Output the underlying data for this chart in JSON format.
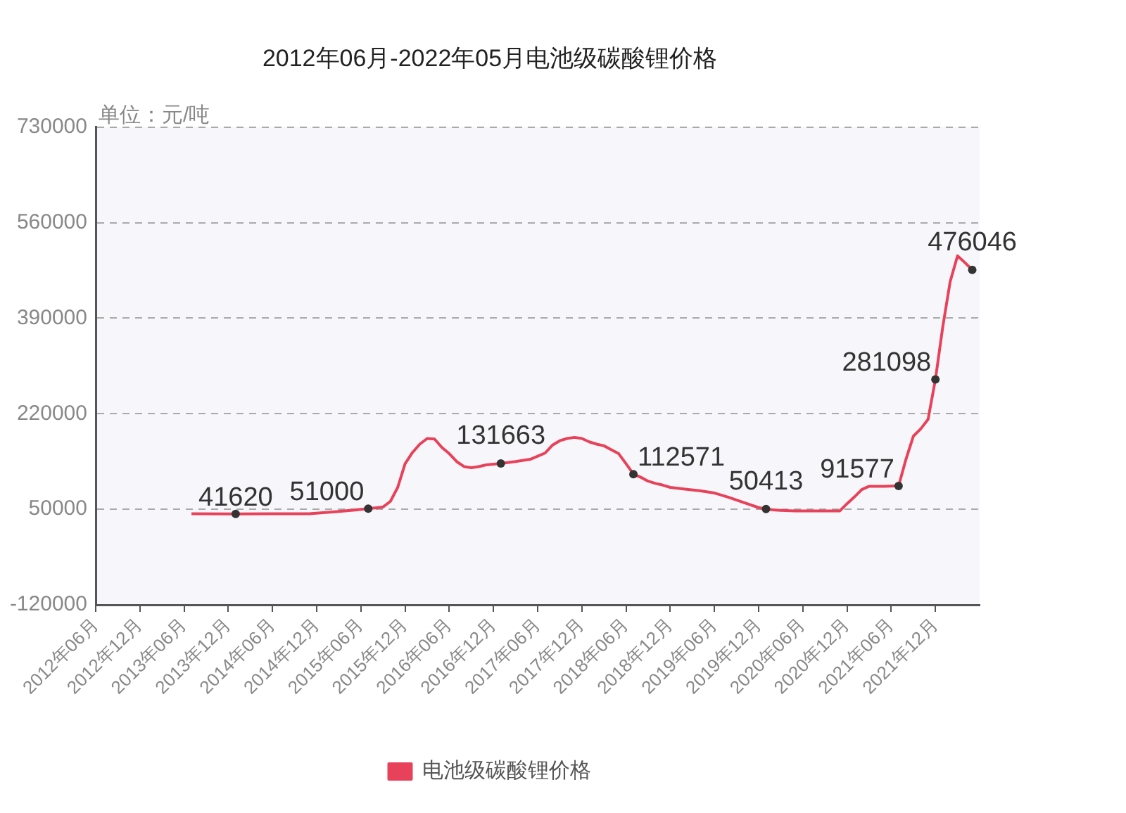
{
  "chart_data": {
    "type": "line",
    "title": "2012年06月-2022年05月电池级碳酸锂价格",
    "ylabel": "单位：元/吨",
    "x": [
      "2013-07",
      "2014-01",
      "2014-06",
      "2014-11",
      "2015-03",
      "2015-07",
      "2015-09",
      "2015-10",
      "2015-11",
      "2015-12",
      "2016-01",
      "2016-02",
      "2016-03",
      "2016-04",
      "2016-05",
      "2016-06",
      "2016-07",
      "2016-08",
      "2016-09",
      "2016-10",
      "2016-11",
      "2017-01",
      "2017-03",
      "2017-05",
      "2017-07",
      "2017-08",
      "2017-09",
      "2017-10",
      "2017-11",
      "2017-12",
      "2018-01",
      "2018-02",
      "2018-03",
      "2018-04",
      "2018-05",
      "2018-06",
      "2018-07",
      "2018-08",
      "2018-09",
      "2018-10",
      "2018-11",
      "2018-12",
      "2019-02",
      "2019-04",
      "2019-06",
      "2019-08",
      "2019-10",
      "2019-12",
      "2020-01",
      "2020-02",
      "2020-03",
      "2020-05",
      "2020-07",
      "2020-09",
      "2020-11",
      "2020-12",
      "2021-01",
      "2021-02",
      "2021-03",
      "2021-05",
      "2021-07",
      "2021-08",
      "2021-09",
      "2021-10",
      "2021-11",
      "2021-12",
      "2022-01",
      "2022-02",
      "2022-03",
      "2022-04",
      "2022-05"
    ],
    "series": [
      {
        "name": "电池级碳酸锂价格",
        "color": "#e8425a",
        "values": [
          42000,
          41620,
          42000,
          42000,
          46000,
          51000,
          54000,
          64000,
          89000,
          131000,
          151000,
          166000,
          176000,
          175000,
          160000,
          149000,
          135000,
          126000,
          124000,
          126000,
          129000,
          131663,
          135000,
          139000,
          150000,
          164000,
          172000,
          176000,
          178000,
          176000,
          170000,
          166000,
          163000,
          156000,
          149000,
          131000,
          112571,
          107000,
          100000,
          96000,
          93000,
          89000,
          86000,
          83000,
          79000,
          71000,
          62000,
          53000,
          50413,
          49000,
          48000,
          47000,
          47000,
          47000,
          47000,
          60000,
          72000,
          85000,
          91000,
          91000,
          91577,
          139000,
          180000,
          193000,
          210000,
          281098,
          375000,
          455000,
          501000,
          489000,
          476046
        ]
      },
      {
        "type": "scatter",
        "color": "#333333",
        "marker": "circle",
        "x": [
          "2014-01",
          "2015-07",
          "2017-01",
          "2018-07",
          "2020-01",
          "2021-07",
          "2021-12",
          "2022-05"
        ],
        "values": [
          41620,
          51000,
          131663,
          112571,
          50413,
          91577,
          281098,
          476046
        ],
        "value_labels": [
          "41620",
          "51000",
          "131663",
          "112571",
          "50413",
          "91577",
          "281098",
          "476046"
        ]
      }
    ],
    "xlim": [
      "2012-06",
      "2022-06"
    ],
    "xticks": [
      {
        "value": "2012-06",
        "label": "2012年06月"
      },
      {
        "value": "2012-12",
        "label": "2012年12月"
      },
      {
        "value": "2013-06",
        "label": "2013年06月"
      },
      {
        "value": "2013-12",
        "label": "2013年12月"
      },
      {
        "value": "2014-06",
        "label": "2014年06月"
      },
      {
        "value": "2014-12",
        "label": "2014年12月"
      },
      {
        "value": "2015-06",
        "label": "2015年06月"
      },
      {
        "value": "2015-12",
        "label": "2015年12月"
      },
      {
        "value": "2016-06",
        "label": "2016年06月"
      },
      {
        "value": "2016-12",
        "label": "2016年12月"
      },
      {
        "value": "2017-06",
        "label": "2017年06月"
      },
      {
        "value": "2017-12",
        "label": "2017年12月"
      },
      {
        "value": "2018-06",
        "label": "2018年06月"
      },
      {
        "value": "2018-12",
        "label": "2018年12月"
      },
      {
        "value": "2019-06",
        "label": "2019年06月"
      },
      {
        "value": "2019-12",
        "label": "2019年12月"
      },
      {
        "value": "2020-06",
        "label": "2020年06月"
      },
      {
        "value": "2020-12",
        "label": "2020年12月"
      },
      {
        "value": "2021-06",
        "label": "2021年06月"
      },
      {
        "value": "2021-12",
        "label": "2021年12月"
      }
    ],
    "ylim": [
      -120000,
      730000
    ],
    "yticks": [
      -120000,
      50000,
      220000,
      390000,
      560000,
      730000
    ],
    "grid": "y",
    "legend": "bottom"
  }
}
